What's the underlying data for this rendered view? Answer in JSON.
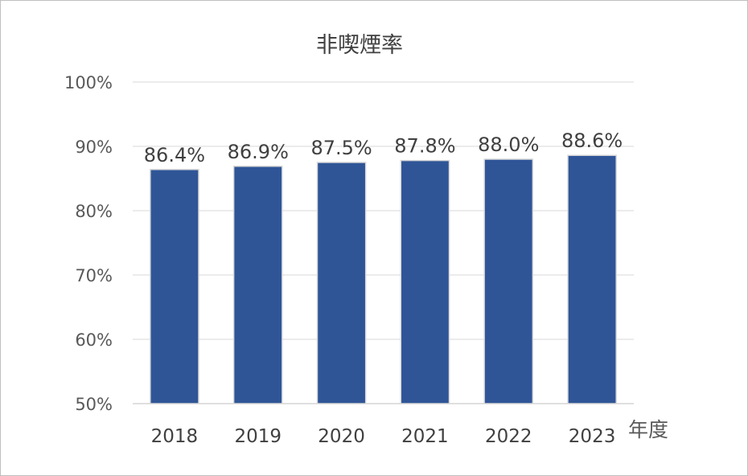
{
  "chart_data": {
    "type": "bar",
    "title": "非喫煙率",
    "xlabel": "年度",
    "ylabel": "",
    "categories": [
      "2018",
      "2019",
      "2020",
      "2021",
      "2022",
      "2023"
    ],
    "values": [
      86.4,
      86.9,
      87.5,
      87.8,
      88.0,
      88.6
    ],
    "data_labels": [
      "86.4%",
      "86.9%",
      "87.5%",
      "87.8%",
      "88.0%",
      "88.6%"
    ],
    "ylim": [
      50,
      100
    ],
    "yticks": [
      50,
      60,
      70,
      80,
      90,
      100
    ],
    "ytick_labels": [
      "50%",
      "60%",
      "70%",
      "80%",
      "90%",
      "100%"
    ],
    "grid": true,
    "legend": "none",
    "bar_color": "#2F5597"
  }
}
